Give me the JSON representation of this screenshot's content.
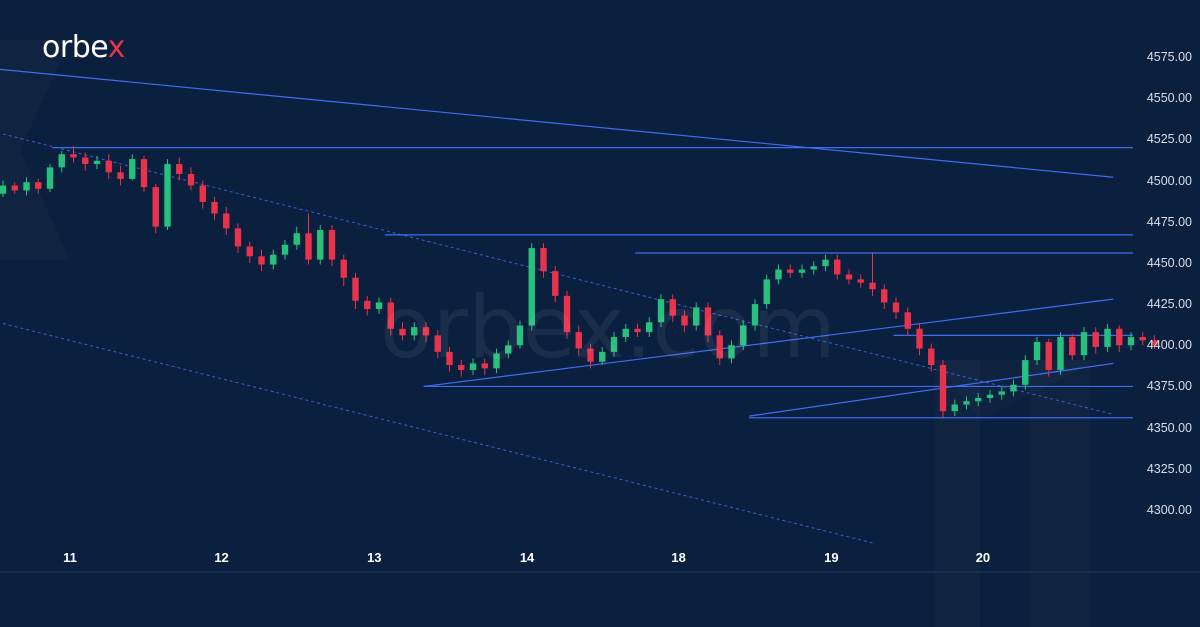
{
  "brand": {
    "name": "orbe",
    "accent_letter": "x"
  },
  "watermark": "orbex.com",
  "colors": {
    "background": "#0b1f3e",
    "bull": "#27c07d",
    "bear": "#e8334a",
    "lines": "#3e6ef0",
    "axis_text": "#d8dee9"
  },
  "chart_data": {
    "type": "candlestick",
    "title": "",
    "xlabel": "",
    "ylabel": "",
    "ylim": [
      4280,
      4580
    ],
    "y_ticks": [
      "4300.00",
      "4325.00",
      "4350.00",
      "4375.00",
      "4400.00",
      "4425.00",
      "4450.00",
      "4475.00",
      "4500.00",
      "4525.00",
      "4550.00",
      "4575.00"
    ],
    "x_ticks": [
      {
        "label": "11",
        "at": 5.7
      },
      {
        "label": "12",
        "at": 18.6
      },
      {
        "label": "13",
        "at": 31.6
      },
      {
        "label": "14",
        "at": 44.6
      },
      {
        "label": "18",
        "at": 57.5
      },
      {
        "label": "19",
        "at": 70.5
      },
      {
        "label": "20",
        "at": 83.4
      }
    ],
    "candles": [
      [
        4492,
        4497,
        4490,
        4500
      ],
      [
        4497,
        4494,
        4492,
        4499
      ],
      [
        4494,
        4499,
        4491,
        4502
      ],
      [
        4499,
        4495,
        4492,
        4501
      ],
      [
        4495,
        4508,
        4493,
        4510
      ],
      [
        4508,
        4516,
        4505,
        4518
      ],
      [
        4516,
        4514,
        4511,
        4521
      ],
      [
        4514,
        4510,
        4506,
        4517
      ],
      [
        4510,
        4512,
        4507,
        4515
      ],
      [
        4512,
        4505,
        4501,
        4516
      ],
      [
        4505,
        4501,
        4497,
        4509
      ],
      [
        4501,
        4513,
        4500,
        4516
      ],
      [
        4513,
        4496,
        4493,
        4515
      ],
      [
        4496,
        4472,
        4468,
        4498
      ],
      [
        4472,
        4510,
        4470,
        4513
      ],
      [
        4510,
        4504,
        4500,
        4514
      ],
      [
        4504,
        4497,
        4494,
        4508
      ],
      [
        4497,
        4487,
        4483,
        4500
      ],
      [
        4487,
        4480,
        4476,
        4490
      ],
      [
        4480,
        4471,
        4467,
        4484
      ],
      [
        4471,
        4460,
        4456,
        4474
      ],
      [
        4460,
        4454,
        4450,
        4463
      ],
      [
        4454,
        4449,
        4445,
        4458
      ],
      [
        4449,
        4455,
        4446,
        4458
      ],
      [
        4455,
        4461,
        4452,
        4464
      ],
      [
        4461,
        4468,
        4458,
        4472
      ],
      [
        4468,
        4452,
        4449,
        4480
      ],
      [
        4452,
        4470,
        4449,
        4473
      ],
      [
        4470,
        4452,
        4448,
        4473
      ],
      [
        4452,
        4441,
        4436,
        4455
      ],
      [
        4441,
        4427,
        4422,
        4444
      ],
      [
        4427,
        4422,
        4418,
        4430
      ],
      [
        4422,
        4426,
        4419,
        4429
      ],
      [
        4426,
        4410,
        4406,
        4429
      ],
      [
        4410,
        4406,
        4403,
        4414
      ],
      [
        4406,
        4411,
        4403,
        4414
      ],
      [
        4411,
        4406,
        4402,
        4414
      ],
      [
        4406,
        4396,
        4392,
        4409
      ],
      [
        4396,
        4388,
        4384,
        4399
      ],
      [
        4388,
        4385,
        4381,
        4391
      ],
      [
        4385,
        4389,
        4382,
        4392
      ],
      [
        4389,
        4386,
        4382,
        4392
      ],
      [
        4386,
        4395,
        4383,
        4398
      ],
      [
        4395,
        4400,
        4392,
        4403
      ],
      [
        4400,
        4412,
        4398,
        4415
      ],
      [
        4412,
        4459,
        4409,
        4462
      ],
      [
        4459,
        4445,
        4441,
        4462
      ],
      [
        4445,
        4430,
        4426,
        4448
      ],
      [
        4430,
        4408,
        4404,
        4433
      ],
      [
        4408,
        4398,
        4394,
        4412
      ],
      [
        4398,
        4390,
        4386,
        4401
      ],
      [
        4390,
        4396,
        4388,
        4399
      ],
      [
        4396,
        4405,
        4393,
        4408
      ],
      [
        4405,
        4410,
        4402,
        4413
      ],
      [
        4410,
        4408,
        4405,
        4413
      ],
      [
        4408,
        4414,
        4405,
        4417
      ],
      [
        4414,
        4428,
        4411,
        4431
      ],
      [
        4428,
        4418,
        4414,
        4431
      ],
      [
        4418,
        4412,
        4408,
        4421
      ],
      [
        4412,
        4423,
        4409,
        4426
      ],
      [
        4423,
        4406,
        4402,
        4426
      ],
      [
        4406,
        4392,
        4388,
        4409
      ],
      [
        4392,
        4400,
        4389,
        4403
      ],
      [
        4400,
        4412,
        4397,
        4415
      ],
      [
        4412,
        4425,
        4409,
        4428
      ],
      [
        4425,
        4440,
        4422,
        4443
      ],
      [
        4440,
        4446,
        4437,
        4449
      ],
      [
        4446,
        4444,
        4441,
        4449
      ],
      [
        4444,
        4446,
        4441,
        4449
      ],
      [
        4446,
        4448,
        4443,
        4451
      ],
      [
        4448,
        4452,
        4445,
        4455
      ],
      [
        4452,
        4443,
        4440,
        4455
      ],
      [
        4443,
        4440,
        4437,
        4446
      ],
      [
        4440,
        4438,
        4435,
        4443
      ],
      [
        4438,
        4434,
        4430,
        4456
      ],
      [
        4434,
        4426,
        4422,
        4437
      ],
      [
        4426,
        4420,
        4416,
        4429
      ],
      [
        4420,
        4410,
        4406,
        4423
      ],
      [
        4410,
        4398,
        4394,
        4413
      ],
      [
        4398,
        4388,
        4384,
        4401
      ],
      [
        4388,
        4360,
        4356,
        4391
      ],
      [
        4360,
        4364,
        4357,
        4367
      ],
      [
        4364,
        4366,
        4361,
        4369
      ],
      [
        4366,
        4368,
        4363,
        4371
      ],
      [
        4368,
        4370,
        4365,
        4373
      ],
      [
        4370,
        4372,
        4367,
        4375
      ],
      [
        4372,
        4376,
        4369,
        4379
      ],
      [
        4376,
        4391,
        4373,
        4394
      ],
      [
        4391,
        4402,
        4388,
        4405
      ],
      [
        4402,
        4385,
        4381,
        4404
      ],
      [
        4385,
        4405,
        4382,
        4408
      ],
      [
        4405,
        4394,
        4391,
        4407
      ],
      [
        4394,
        4408,
        4391,
        4411
      ],
      [
        4408,
        4399,
        4395,
        4411
      ],
      [
        4399,
        4410,
        4396,
        4413
      ],
      [
        4410,
        4400,
        4396,
        4412
      ],
      [
        4400,
        4405,
        4397,
        4408
      ],
      [
        4405,
        4403,
        4400,
        4408
      ],
      [
        4403,
        4400,
        4398,
        4406
      ]
    ],
    "trendlines": [
      {
        "style": "solid",
        "x1": -1,
        "y1": 4568,
        "x2": 94.5,
        "y2": 4502
      },
      {
        "style": "dashed",
        "x1": -1,
        "y1": 4530,
        "x2": 94.5,
        "y2": 4358
      },
      {
        "style": "dashed",
        "x1": -1,
        "y1": 4415,
        "x2": 74,
        "y2": 4280
      },
      {
        "style": "solid",
        "x1": 35.8,
        "y1": 4375,
        "x2": 94.5,
        "y2": 4428
      },
      {
        "style": "solid",
        "x1": 63.5,
        "y1": 4357,
        "x2": 94.5,
        "y2": 4389
      }
    ],
    "levels": [
      {
        "y": 4520,
        "from": 4.2
      },
      {
        "y": 4467,
        "from": 32.5
      },
      {
        "y": 4456,
        "from": 53.8
      },
      {
        "y": 4406,
        "from": 75.8
      },
      {
        "y": 4375,
        "from": 35.8
      },
      {
        "y": 4356,
        "from": 63.5
      }
    ]
  }
}
